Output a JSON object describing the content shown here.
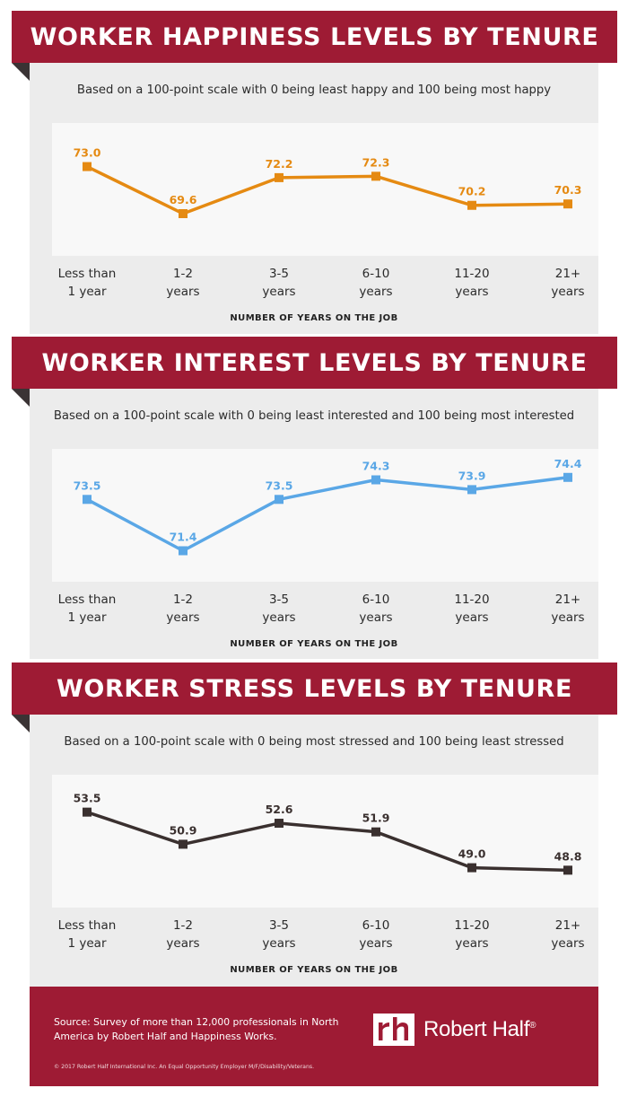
{
  "colors": {
    "banner": "#9e1b34",
    "panel": "#ececec",
    "plot_bg": "#f8f8f8",
    "happiness": "#e58a12",
    "interest": "#5aa7e6",
    "stress": "#3a302f"
  },
  "charts": [
    {
      "title": "WORKER HAPPINESS LEVELS BY TENURE",
      "subtitle": "Based on a 100-point scale with 0 being least happy and 100 being most happy",
      "xlabel": "NUMBER OF YEARS ON THE JOB",
      "tick_labels": [
        [
          "Less than",
          "1 year"
        ],
        [
          "1-2",
          "years"
        ],
        [
          "3-5",
          "years"
        ],
        [
          "6-10",
          "years"
        ],
        [
          "11-20",
          "years"
        ],
        [
          "21+",
          "years"
        ]
      ],
      "value_labels": [
        "73.0",
        "69.6",
        "72.2",
        "72.3",
        "70.2",
        "70.3"
      ]
    },
    {
      "title": "WORKER INTEREST LEVELS BY TENURE",
      "subtitle": "Based on a 100-point scale with 0 being least interested and 100 being most interested",
      "xlabel": "NUMBER OF YEARS ON THE JOB",
      "tick_labels": [
        [
          "Less than",
          "1 year"
        ],
        [
          "1-2",
          "years"
        ],
        [
          "3-5",
          "years"
        ],
        [
          "6-10",
          "years"
        ],
        [
          "11-20",
          "years"
        ],
        [
          "21+",
          "years"
        ]
      ],
      "value_labels": [
        "73.5",
        "71.4",
        "73.5",
        "74.3",
        "73.9",
        "74.4"
      ]
    },
    {
      "title": "WORKER STRESS LEVELS BY TENURE",
      "subtitle": "Based on a 100-point scale with 0 being most stressed and 100 being least stressed",
      "xlabel": "NUMBER OF YEARS ON THE JOB",
      "tick_labels": [
        [
          "Less than",
          "1 year"
        ],
        [
          "1-2",
          "years"
        ],
        [
          "3-5",
          "years"
        ],
        [
          "6-10",
          "years"
        ],
        [
          "11-20",
          "years"
        ],
        [
          "21+",
          "years"
        ]
      ],
      "value_labels": [
        "53.5",
        "50.9",
        "52.6",
        "51.9",
        "49.0",
        "48.8"
      ]
    }
  ],
  "chart_data": [
    {
      "type": "line",
      "title": "WORKER HAPPINESS LEVELS BY TENURE",
      "subtitle": "Based on a 100-point scale with 0 being least happy and 100 being most happy",
      "xlabel": "NUMBER OF YEARS ON THE JOB",
      "ylabel": "",
      "categories": [
        "Less than 1 year",
        "1-2 years",
        "3-5 years",
        "6-10 years",
        "11-20 years",
        "21+ years"
      ],
      "values": [
        73.0,
        69.6,
        72.2,
        72.3,
        70.2,
        70.3
      ],
      "ylim": [
        67.2,
        75.5
      ],
      "grid": false,
      "color": "#e58a12"
    },
    {
      "type": "line",
      "title": "WORKER INTEREST LEVELS BY TENURE",
      "subtitle": "Based on a 100-point scale with 0 being least interested and 100 being most interested",
      "xlabel": "NUMBER OF YEARS ON THE JOB",
      "ylabel": "",
      "categories": [
        "Less than 1 year",
        "1-2 years",
        "3-5 years",
        "6-10 years",
        "11-20 years",
        "21+ years"
      ],
      "values": [
        73.5,
        71.4,
        73.5,
        74.3,
        73.9,
        74.4
      ],
      "ylim": [
        70.5,
        75.2
      ],
      "grid": false,
      "color": "#5aa7e6"
    },
    {
      "type": "line",
      "title": "WORKER STRESS LEVELS BY TENURE",
      "subtitle": "Based on a 100-point scale with 0 being most stressed and 100 being least stressed",
      "xlabel": "NUMBER OF YEARS ON THE JOB",
      "ylabel": "",
      "categories": [
        "Less than 1 year",
        "1-2 years",
        "3-5 years",
        "6-10 years",
        "11-20 years",
        "21+ years"
      ],
      "values": [
        53.5,
        50.9,
        52.6,
        51.9,
        49.0,
        48.8
      ],
      "ylim": [
        46.5,
        55.8
      ],
      "grid": false,
      "color": "#3a302f"
    }
  ],
  "footer": {
    "source": "Source: Survey of more than 12,000 professionals in North America by Robert Half and Happiness Works.",
    "copyright": "© 2017 Robert Half International Inc. An Equal Opportunity Employer M/F/Disability/Veterans.",
    "logo_mark": "rh",
    "logo_text": "Robert Half",
    "logo_registered": "®"
  }
}
